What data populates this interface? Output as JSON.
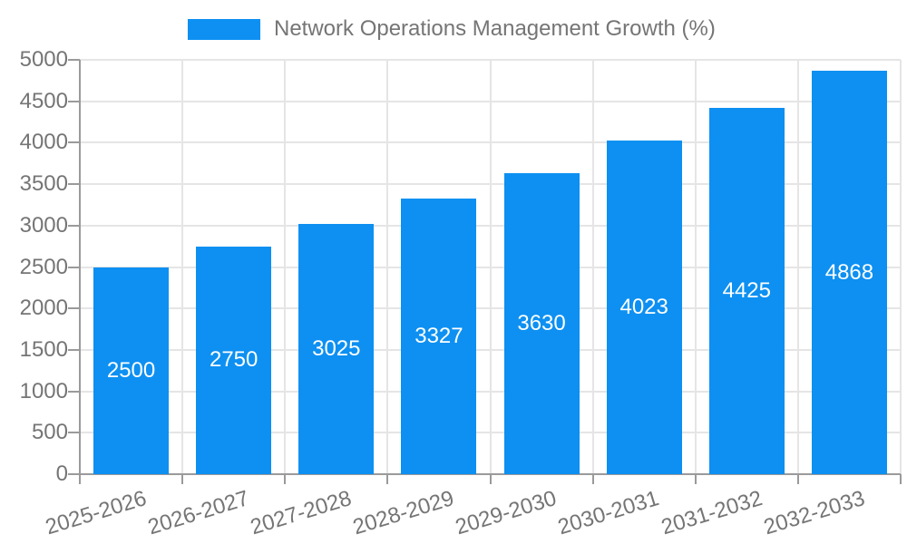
{
  "chart_data": {
    "type": "bar",
    "title": "Network Operations Management Growth (%)",
    "categories": [
      "2025-2026",
      "2026-2027",
      "2027-2028",
      "2028-2029",
      "2029-2030",
      "2030-2031",
      "2031-2032",
      "2032-2033"
    ],
    "values": [
      2500,
      2750,
      3025,
      3327,
      3630,
      4023,
      4425,
      4868
    ],
    "yticks": [
      0,
      500,
      1000,
      1500,
      2000,
      2500,
      3000,
      3500,
      4000,
      4500,
      5000
    ],
    "ylim": [
      0,
      5000
    ],
    "xlabel": "",
    "ylabel": "",
    "grid": true,
    "legend_position": "top-center",
    "bar_label_position": "center-inside",
    "colors": {
      "bar": "#0d90f2",
      "bar_label": "#ffffff",
      "axis_text": "#757575",
      "grid_line": "#e5e5e5",
      "axis_line": "#9a9a9a",
      "background": "#ffffff"
    }
  }
}
